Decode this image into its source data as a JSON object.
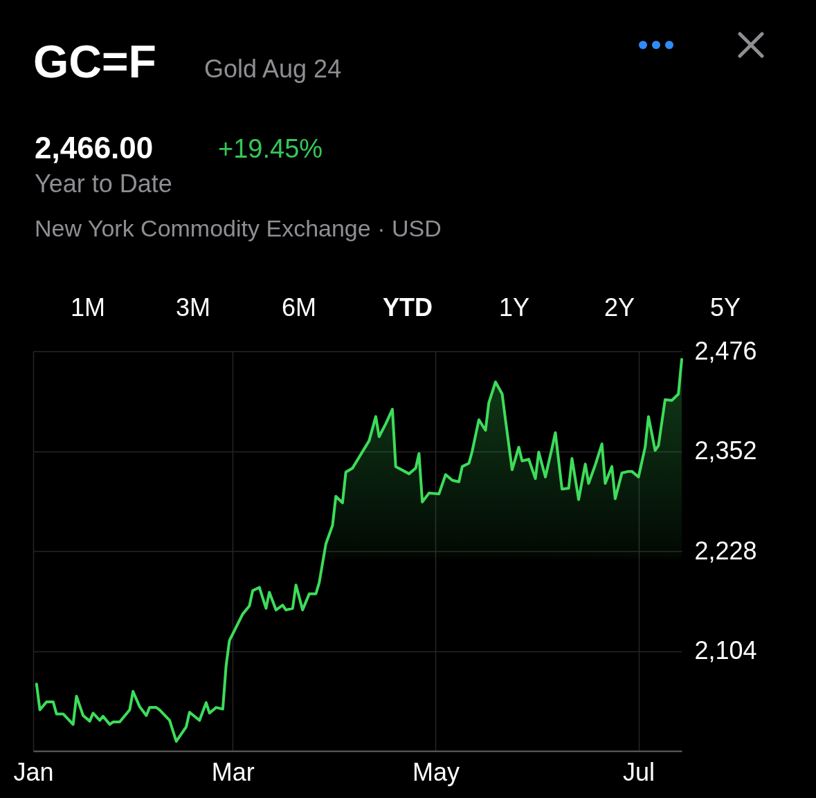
{
  "chart_data": {
    "type": "area",
    "title": "GC=F",
    "subtitle": "Gold Aug 24",
    "annotations": [
      "2,466.00",
      "+19.45%",
      "Year to Date",
      "New York Commodity Exchange · USD",
      "1M",
      "3M",
      "6M",
      "YTD",
      "1Y",
      "2Y",
      "5Y"
    ],
    "color": "#3ddc5a",
    "x": [
      "--01-02",
      "--01-03",
      "--01-05",
      "--01-07",
      "--01-08",
      "--01-10",
      "--01-13",
      "--01-14",
      "--01-16",
      "--01-18",
      "--01-19",
      "--01-21",
      "--01-22",
      "--01-24",
      "--01-25",
      "--01-27",
      "--01-30",
      "--01-31",
      "--02-02",
      "--02-04",
      "--02-05",
      "--02-07",
      "--02-08",
      "--02-11",
      "--02-13",
      "--02-16",
      "--02-17",
      "--02-20",
      "--02-22",
      "--02-23",
      "--02-25",
      "--02-27",
      "--02-28",
      "--02-29",
      "--03-04",
      "--03-06",
      "--03-07",
      "--03-09",
      "--03-11",
      "--03-12",
      "--03-14",
      "--03-16",
      "--03-17",
      "--03-19",
      "--03-20",
      "--03-22",
      "--03-24",
      "--03-26",
      "--03-27",
      "--03-29",
      "--03-31",
      "--04-01",
      "--04-03",
      "--04-04",
      "--04-06",
      "--04-11",
      "--04-13",
      "--04-14",
      "--04-16",
      "--04-18",
      "--04-19",
      "--04-23",
      "--04-25",
      "--04-26",
      "--04-27",
      "--04-29",
      "--05-02",
      "--05-04",
      "--05-06",
      "--05-08",
      "--05-09",
      "--05-11",
      "--05-12",
      "--05-14",
      "--05-16",
      "--05-17",
      "--05-19",
      "--05-21",
      "--05-22",
      "--05-24",
      "--05-26",
      "--05-27",
      "--05-29",
      "--05-31",
      "--06-01",
      "--06-03",
      "--06-05",
      "--06-06",
      "--06-08",
      "--06-10",
      "--06-11",
      "--06-13",
      "--06-15",
      "--06-16",
      "--06-18",
      "--06-20",
      "--06-21",
      "--06-23",
      "--06-24",
      "--06-26",
      "--06-28",
      "--06-29",
      "--07-01",
      "--07-03",
      "--07-04",
      "--07-06",
      "--07-07",
      "--07-09",
      "--07-11",
      "--07-13",
      "--07-14"
    ],
    "values": [
      2063,
      2031,
      2041,
      2041,
      2026,
      2026,
      2013,
      2048,
      2024,
      2017,
      2027,
      2018,
      2023,
      2013,
      2016,
      2016,
      2031,
      2054,
      2035,
      2024,
      2034,
      2034,
      2031,
      2018,
      1992,
      2010,
      2028,
      2018,
      2040,
      2027,
      2034,
      2032,
      2086,
      2117,
      2150,
      2160,
      2179,
      2183,
      2157,
      2177,
      2155,
      2161,
      2155,
      2157,
      2186,
      2155,
      2175,
      2175,
      2189,
      2237,
      2260,
      2296,
      2288,
      2326,
      2331,
      2365,
      2395,
      2370,
      2386,
      2404,
      2333,
      2324,
      2331,
      2349,
      2289,
      2300,
      2299,
      2323,
      2316,
      2314,
      2333,
      2337,
      2352,
      2391,
      2378,
      2412,
      2438,
      2423,
      2391,
      2329,
      2357,
      2340,
      2342,
      2318,
      2351,
      2320,
      2356,
      2375,
      2305,
      2306,
      2343,
      2292,
      2336,
      2312,
      2335,
      2361,
      2312,
      2333,
      2293,
      2325,
      2327,
      2327,
      2320,
      2357,
      2395,
      2353,
      2359,
      2416,
      2415,
      2423,
      2466
    ],
    "xlim": [
      "--01-01",
      "--07-14"
    ],
    "ylim": [
      1980,
      2476
    ],
    "xticks": [
      {
        "value": "--01-01",
        "label": "Jan"
      },
      {
        "value": "--03-01",
        "label": "Mar"
      },
      {
        "value": "--05-01",
        "label": "May"
      },
      {
        "value": "--07-01",
        "label": "Jul"
      }
    ],
    "yticks": [
      {
        "value": 2104,
        "label": "2,104"
      },
      {
        "value": 2228,
        "label": "2,228"
      },
      {
        "value": 2352,
        "label": "2,352"
      },
      {
        "value": 2476,
        "label": "2,476"
      }
    ],
    "grid": true
  }
}
